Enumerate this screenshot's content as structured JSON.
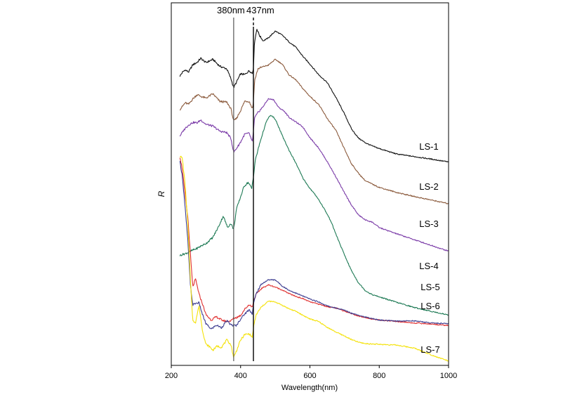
{
  "chart_data": {
    "type": "line",
    "title": "",
    "xlabel": "Wavelength(nm)",
    "ylabel": "R",
    "xlim": [
      200,
      1000
    ],
    "ylim": [
      0,
      100
    ],
    "x_ticks": [
      200,
      400,
      600,
      800,
      1000
    ],
    "y_ticks_shown": false,
    "grid": false,
    "legend": "inline-right",
    "reference_lines": [
      {
        "x": 380,
        "label": "380nm",
        "style": "solid"
      },
      {
        "x": 437,
        "label": "437nm",
        "style": "dashed"
      }
    ],
    "series": [
      {
        "name": "LS-1",
        "color": "#111111",
        "x": [
          225,
          232,
          240,
          250,
          262,
          275,
          285,
          300,
          320,
          340,
          360,
          372,
          380,
          388,
          400,
          412,
          425,
          434,
          437,
          440,
          447,
          455,
          465,
          480,
          500,
          520,
          540,
          560,
          580,
          600,
          625,
          650,
          675,
          700,
          720,
          740,
          760,
          780,
          800,
          850,
          900,
          950,
          1000
        ],
        "y": [
          79.8,
          80.8,
          81.5,
          80.9,
          82.9,
          83.6,
          84.7,
          83.5,
          84.4,
          82.5,
          81.8,
          79.1,
          76.6,
          78.1,
          80.4,
          80.2,
          81.3,
          80.5,
          82.1,
          89.2,
          92.8,
          90.9,
          89.5,
          90.3,
          92.2,
          91.1,
          89.2,
          87.7,
          85.2,
          83.1,
          80.2,
          78.0,
          73.9,
          69.3,
          65.2,
          62.7,
          61.4,
          60.5,
          59.8,
          58.3,
          57.6,
          56.9,
          56.1
        ]
      },
      {
        "name": "LS-2",
        "color": "#8B5A3C",
        "x": [
          225,
          232,
          240,
          250,
          262,
          275,
          285,
          300,
          320,
          340,
          360,
          372,
          380,
          388,
          400,
          412,
          425,
          434,
          437,
          440,
          450,
          465,
          480,
          500,
          520,
          540,
          560,
          580,
          600,
          625,
          650,
          675,
          700,
          720,
          740,
          760,
          780,
          800,
          850,
          900,
          950,
          1000
        ],
        "y": [
          70.6,
          71.4,
          72.4,
          72.0,
          73.5,
          74.7,
          74.2,
          73.7,
          74.9,
          72.8,
          72.6,
          70.8,
          67.4,
          68.1,
          70.3,
          72.9,
          72.8,
          70.8,
          72.6,
          78.4,
          81.8,
          82.4,
          82.8,
          84.4,
          83.1,
          80.1,
          78.7,
          76.3,
          74.2,
          72.0,
          68.1,
          64.8,
          59.6,
          55.6,
          53.0,
          50.9,
          50.0,
          49.1,
          47.7,
          46.6,
          45.6,
          44.6
        ]
      },
      {
        "name": "LS-3",
        "color": "#7B3CA8",
        "x": [
          225,
          232,
          240,
          250,
          262,
          275,
          285,
          300,
          320,
          340,
          360,
          372,
          380,
          388,
          400,
          412,
          425,
          434,
          437,
          440,
          450,
          465,
          480,
          495,
          510,
          525,
          540,
          560,
          580,
          600,
          625,
          650,
          675,
          700,
          720,
          740,
          760,
          780,
          800,
          850,
          900,
          950,
          1000
        ],
        "y": [
          63.3,
          64.3,
          65.4,
          66.3,
          67.0,
          66.9,
          67.7,
          66.5,
          66.0,
          64.6,
          64.2,
          62.6,
          58.8,
          59.8,
          61.6,
          63.8,
          64.0,
          61.5,
          64.6,
          68.2,
          69.7,
          71.4,
          73.5,
          73.3,
          71.1,
          70.2,
          68.4,
          67.1,
          65.7,
          62.8,
          60.0,
          56.2,
          52.0,
          47.5,
          44.2,
          41.5,
          40.1,
          39.5,
          38.0,
          36.3,
          34.7,
          33.1,
          31.5
        ]
      },
      {
        "name": "LS-4",
        "color": "#1E7A55",
        "x": [
          225,
          232,
          240,
          250,
          262,
          275,
          285,
          300,
          320,
          335,
          350,
          362,
          372,
          380,
          388,
          398,
          410,
          422,
          432,
          437,
          442,
          455,
          465,
          475,
          485,
          495,
          505,
          520,
          540,
          560,
          580,
          600,
          620,
          640,
          660,
          680,
          700,
          720,
          740,
          760,
          780,
          800,
          850,
          900,
          950,
          1000
        ],
        "y": [
          30.3,
          30.6,
          30.8,
          31.2,
          31.8,
          32.3,
          32.9,
          33.6,
          35.3,
          38.0,
          41.2,
          38.1,
          39.1,
          37.5,
          43.1,
          45.9,
          49.4,
          50.5,
          48.8,
          52.0,
          56.4,
          61.2,
          64.4,
          67.4,
          68.9,
          68.5,
          66.9,
          63.4,
          59.3,
          55.7,
          51.6,
          48.8,
          46.5,
          43.4,
          39.9,
          35.0,
          30.4,
          26.1,
          22.8,
          20.6,
          19.5,
          18.9,
          17.4,
          16.0,
          14.9,
          13.9
        ]
      },
      {
        "name": "LS-5",
        "color": "#E03030",
        "x": [
          225,
          232,
          240,
          248,
          255,
          262,
          270,
          280,
          290,
          300,
          315,
          330,
          345,
          360,
          372,
          380,
          388,
          400,
          412,
          425,
          434,
          437,
          445,
          460,
          480,
          500,
          520,
          540,
          560,
          580,
          600,
          625,
          650,
          675,
          700,
          720,
          740,
          760,
          780,
          800,
          850,
          900,
          950,
          1000
        ],
        "y": [
          57.5,
          54.1,
          46.8,
          40.5,
          30.9,
          21.6,
          23.8,
          19.7,
          17.0,
          14.0,
          12.5,
          13.4,
          12.5,
          12.1,
          12.3,
          13.0,
          13.2,
          13.8,
          15.5,
          16.8,
          16.0,
          17.7,
          19.6,
          21.2,
          22.2,
          21.6,
          20.8,
          19.8,
          19.0,
          18.4,
          17.5,
          16.9,
          16.2,
          15.8,
          15.0,
          14.3,
          13.6,
          13.2,
          12.8,
          12.5,
          12.1,
          11.7,
          11.4,
          11.0
        ]
      },
      {
        "name": "LS-6",
        "color": "#3C3C90",
        "x": [
          225,
          232,
          240,
          248,
          255,
          262,
          270,
          280,
          290,
          300,
          315,
          330,
          345,
          360,
          372,
          380,
          388,
          400,
          412,
          425,
          434,
          437,
          445,
          460,
          480,
          500,
          520,
          540,
          560,
          580,
          600,
          625,
          650,
          675,
          700,
          720,
          740,
          760,
          780,
          800,
          850,
          900,
          950,
          1000
        ],
        "y": [
          56.1,
          52.1,
          43.4,
          34.1,
          22.2,
          16.7,
          17.1,
          17.3,
          14.0,
          11.5,
          10.0,
          11.1,
          10.4,
          12.3,
          11.2,
          11.0,
          11.0,
          12.8,
          14.2,
          15.4,
          14.2,
          16.9,
          19.8,
          22.4,
          23.6,
          23.6,
          21.9,
          20.7,
          19.9,
          19.1,
          18.3,
          17.5,
          16.4,
          15.8,
          15.2,
          14.4,
          13.9,
          13.3,
          12.9,
          12.5,
          12.2,
          12.3,
          11.7,
          11.5
        ]
      },
      {
        "name": "LS-7",
        "color": "#F4E20A",
        "x": [
          225,
          232,
          240,
          248,
          255,
          262,
          270,
          280,
          290,
          300,
          310,
          320,
          332,
          345,
          360,
          372,
          380,
          388,
          400,
          412,
          425,
          434,
          437,
          445,
          460,
          480,
          500,
          520,
          540,
          560,
          580,
          600,
          625,
          650,
          675,
          700,
          720,
          740,
          760,
          780,
          800,
          850,
          900,
          950,
          1000
        ],
        "y": [
          57.8,
          57.1,
          49.8,
          38.4,
          24.0,
          12.2,
          11.9,
          16.5,
          9.6,
          5.8,
          5.2,
          4.2,
          5.3,
          5.0,
          7.0,
          5.7,
          2.2,
          4.0,
          7.0,
          8.5,
          8.7,
          7.7,
          10.4,
          14.0,
          16.1,
          17.7,
          17.5,
          16.6,
          15.6,
          14.9,
          13.8,
          12.8,
          12.1,
          10.5,
          9.2,
          8.1,
          7.1,
          6.4,
          6.0,
          5.9,
          5.8,
          5.6,
          4.8,
          2.9,
          1.2
        ]
      }
    ]
  }
}
